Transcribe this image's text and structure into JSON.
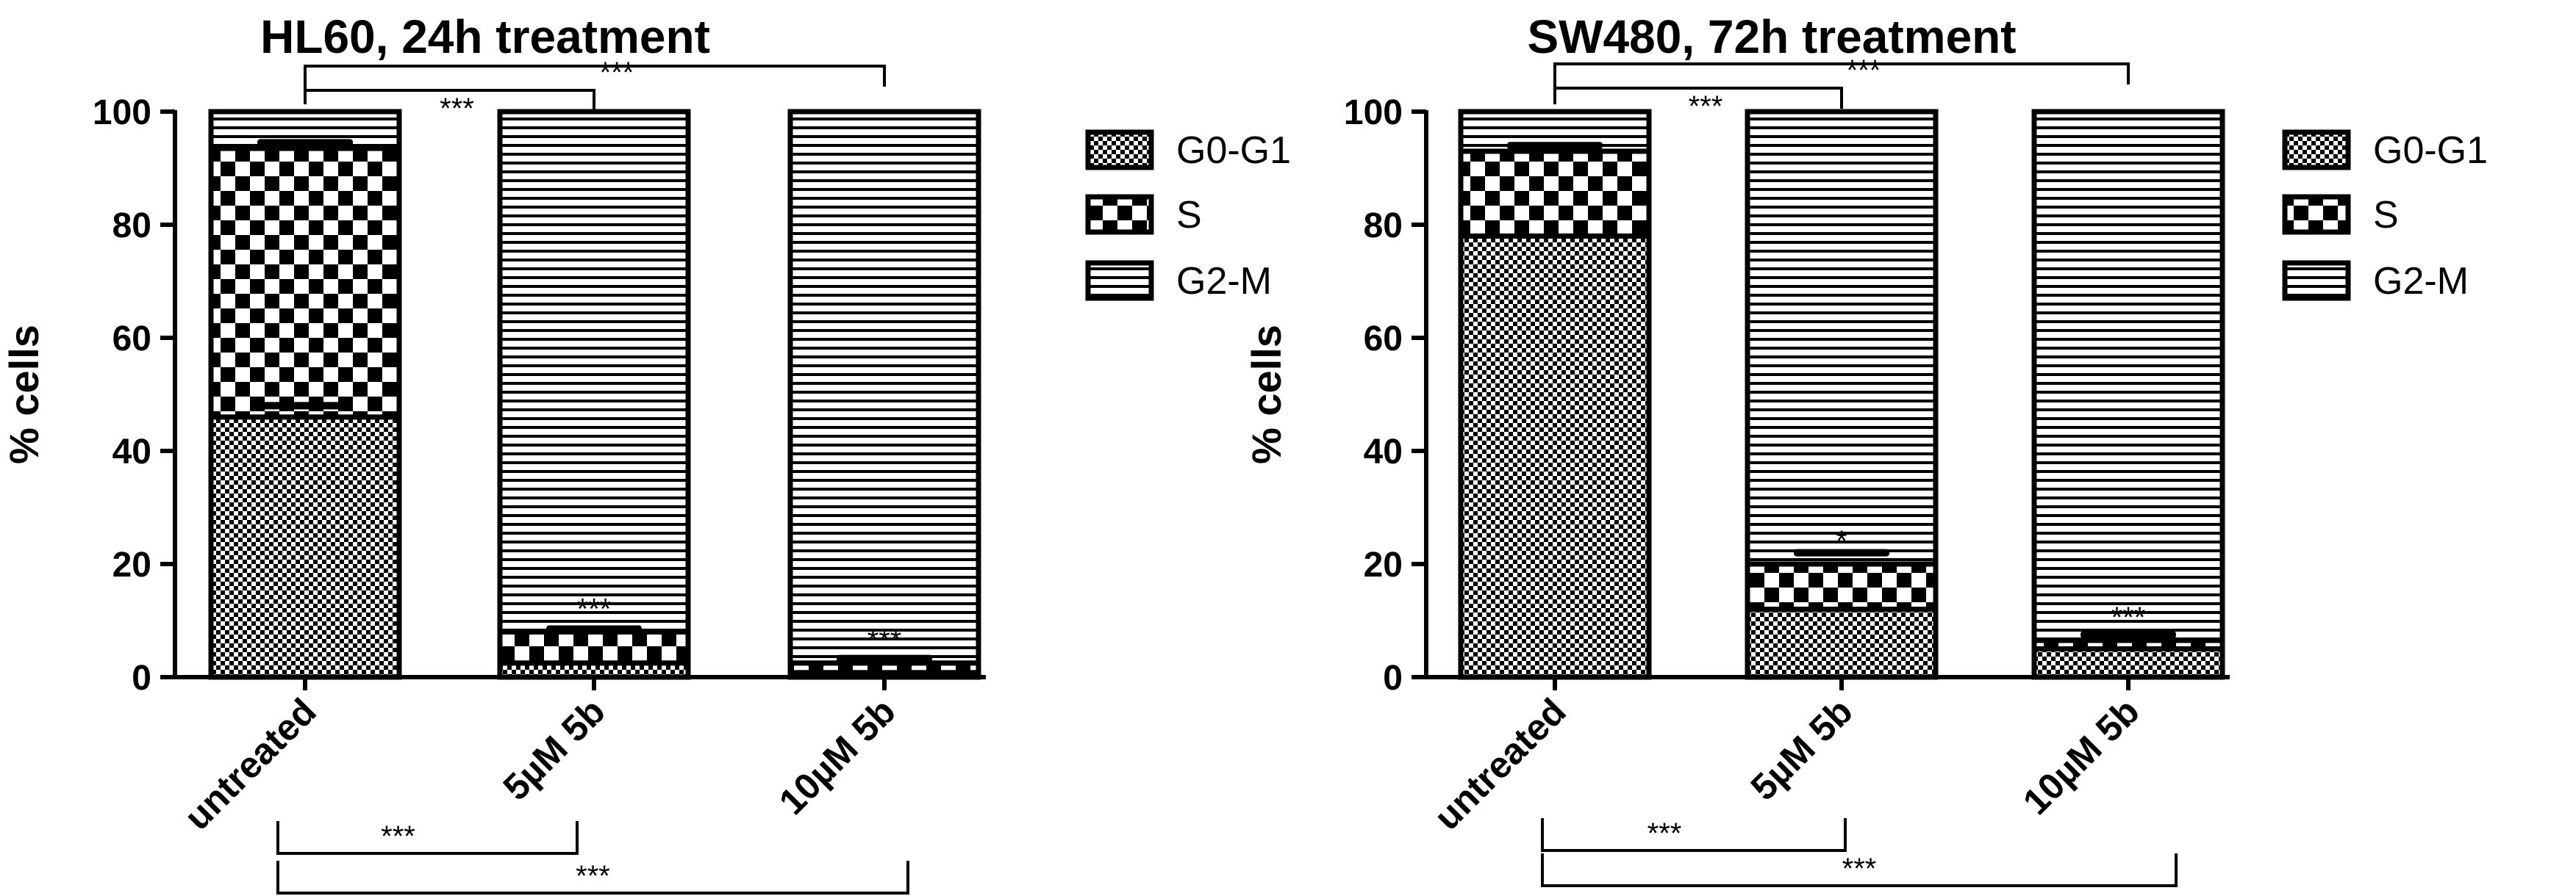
{
  "chart_data": [
    {
      "type": "bar",
      "stacked": true,
      "title": "HL60, 24h treatment",
      "ylabel": "% cells",
      "ylim": [
        0,
        100
      ],
      "yticks": [
        "0",
        "20",
        "40",
        "60",
        "80",
        "100"
      ],
      "categories": [
        "untreated",
        "5µM 5b",
        "10µM 5b"
      ],
      "series": [
        {
          "name": "G0-G1",
          "values": [
            46,
            2.5,
            0.8
          ]
        },
        {
          "name": "S",
          "values": [
            47.5,
            5.5,
            1.7
          ]
        },
        {
          "name": "G2-M",
          "values": [
            6.5,
            92,
            97.5
          ]
        }
      ],
      "error_tops": [
        94.5,
        48,
        8.5,
        3.3
      ],
      "bar_annotations": [
        "",
        "***",
        "***"
      ],
      "comparisons_top": [
        {
          "from": 0,
          "to": 1,
          "label": "***"
        },
        {
          "from": 0,
          "to": 2,
          "label": "***"
        }
      ],
      "comparisons_bottom": [
        {
          "from": 0,
          "to": 1,
          "label": "***"
        },
        {
          "from": 0,
          "to": 2,
          "label": "***"
        }
      ],
      "legend": [
        "G0-G1",
        "S",
        "G2-M"
      ],
      "legend_placement": "right",
      "grid": false
    },
    {
      "type": "bar",
      "stacked": true,
      "title": "SW480, 72h treatment",
      "ylabel": "% cells",
      "ylim": [
        0,
        100
      ],
      "yticks": [
        "0",
        "20",
        "40",
        "60",
        "80",
        "100"
      ],
      "categories": [
        "untreated",
        "5µM 5b",
        "10µM 5b"
      ],
      "series": [
        {
          "name": "G0-G1",
          "values": [
            78,
            12,
            5
          ]
        },
        {
          "name": "S",
          "values": [
            15,
            8,
            1.5
          ]
        },
        {
          "name": "G2-M",
          "values": [
            7,
            80,
            93.5
          ]
        }
      ],
      "error_tops": [
        94,
        22,
        7.5
      ],
      "bar_annotations": [
        "",
        "*",
        "***"
      ],
      "comparisons_top": [
        {
          "from": 0,
          "to": 1,
          "label": "***"
        },
        {
          "from": 0,
          "to": 2,
          "label": "***"
        }
      ],
      "comparisons_bottom": [
        {
          "from": 0,
          "to": 1,
          "label": "***"
        },
        {
          "from": 0,
          "to": 2,
          "label": "***"
        }
      ],
      "legend": [
        "G0-G1",
        "S",
        "G2-M"
      ],
      "legend_placement": "right",
      "grid": false
    }
  ]
}
